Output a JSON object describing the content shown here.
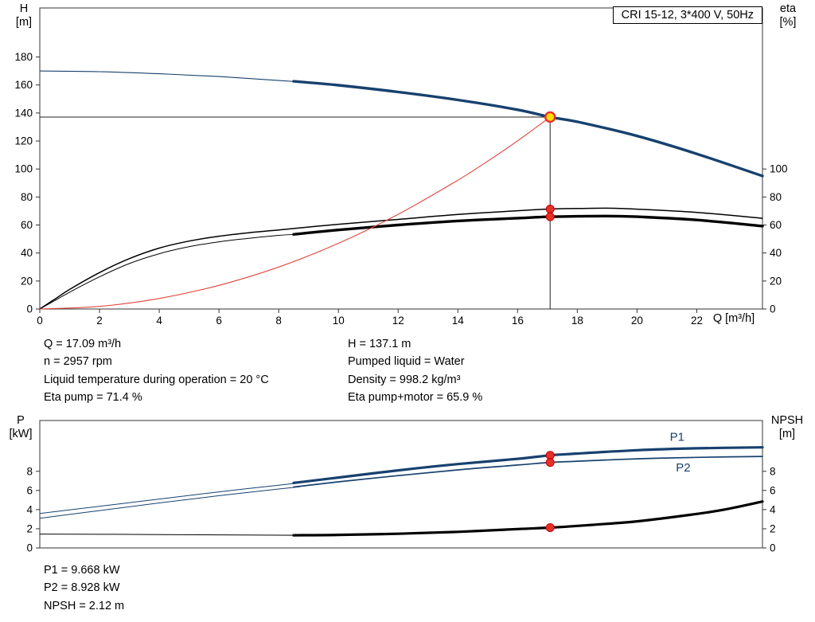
{
  "title_box": "CRI 15-12, 3*400 V, 50Hz",
  "info_top": {
    "left": [
      "Q = 17.09 m³/h",
      "n = 2957 rpm",
      "Liquid temperature during operation = 20 °C",
      "Eta pump = 71.4 %"
    ],
    "right": [
      "H = 137.1 m",
      "Pumped liquid = Water",
      "Density = 998.2 kg/m³",
      "Eta pump+motor = 65.9 %"
    ]
  },
  "info_bottom": [
    "P1 = 9.668 kW",
    "P2 = 8.928 kW",
    "NPSH = 2.12 m"
  ],
  "duty_point": {
    "q_m3h": 17.09,
    "h_m": 137.1,
    "eta_pump_pct": 71.4,
    "eta_pump_motor_pct": 65.9,
    "p1_kw": 9.668,
    "p2_kw": 8.928,
    "npsh_m": 2.12
  },
  "chart_data": [
    {
      "type": "line",
      "name": "hq-eta-chart",
      "xlim": [
        0,
        24.2
      ],
      "ylim": [
        0,
        215
      ],
      "x_ticks": [
        0,
        2,
        4,
        6,
        8,
        10,
        12,
        14,
        16,
        18,
        20,
        22
      ],
      "x_axis_label": "Q [m³/h]",
      "left_axis": {
        "title": [
          "H",
          "[m]"
        ],
        "ticks": [
          0,
          20,
          40,
          60,
          80,
          100,
          120,
          140,
          160,
          180
        ]
      },
      "right_axis": {
        "title": [
          "eta",
          "[%]"
        ],
        "ticks": [
          0,
          20,
          40,
          60,
          80,
          100
        ]
      },
      "series": [
        {
          "name": "head-curve-thin",
          "color": "#17416e",
          "width": 1.1,
          "points": [
            [
              0,
              170
            ],
            [
              2,
              169.5
            ],
            [
              4,
              168
            ],
            [
              6,
              166
            ],
            [
              8,
              163.2
            ],
            [
              9,
              161.8
            ]
          ]
        },
        {
          "name": "head-curve",
          "color": "#17416e",
          "width": 3.4,
          "points": [
            [
              8.5,
              162.6
            ],
            [
              10,
              159.8
            ],
            [
              12,
              155
            ],
            [
              14,
              149.3
            ],
            [
              16,
              142.3
            ],
            [
              17.09,
              137.1
            ],
            [
              18,
              133.7
            ],
            [
              20,
              123.6
            ],
            [
              22,
              110.8
            ],
            [
              24.2,
              95
            ]
          ]
        },
        {
          "name": "eta-pump-curve",
          "color": "#000000",
          "width": 1.5,
          "points": [
            [
              0,
              0
            ],
            [
              0.5,
              7
            ],
            [
              1,
              14
            ],
            [
              2,
              26
            ],
            [
              3,
              36
            ],
            [
              4,
              43.5
            ],
            [
              5,
              48.5
            ],
            [
              6,
              52
            ],
            [
              7,
              54.5
            ],
            [
              8,
              56.5
            ],
            [
              10,
              60.5
            ],
            [
              12,
              64
            ],
            [
              14,
              67.5
            ],
            [
              16,
              70.2
            ],
            [
              17.09,
              71.4
            ],
            [
              18,
              71.8
            ],
            [
              19,
              72
            ],
            [
              20,
              71.3
            ],
            [
              22,
              69
            ],
            [
              24.2,
              64.8
            ]
          ]
        },
        {
          "name": "eta-pump-motor-curve-thin",
          "color": "#000000",
          "width": 1,
          "points": [
            [
              0,
              0
            ],
            [
              0.5,
              6
            ],
            [
              1,
              12
            ],
            [
              2,
              23
            ],
            [
              3,
              32.5
            ],
            [
              4,
              39.5
            ],
            [
              5,
              44.5
            ],
            [
              6,
              48
            ],
            [
              7,
              50.5
            ],
            [
              8,
              52.6
            ],
            [
              8.6,
              53.4
            ]
          ]
        },
        {
          "name": "eta-pump-motor-curve",
          "color": "#000000",
          "width": 3.4,
          "points": [
            [
              8.5,
              53.3
            ],
            [
              10,
              56.5
            ],
            [
              12,
              60
            ],
            [
              14,
              62.9
            ],
            [
              16,
              64.9
            ],
            [
              17.09,
              65.9
            ],
            [
              18,
              66.2
            ],
            [
              19,
              66.4
            ],
            [
              20,
              65.9
            ],
            [
              22,
              63.6
            ],
            [
              24.2,
              59.2
            ]
          ]
        },
        {
          "name": "system-curve",
          "color": "#e0483e",
          "width": 1.1,
          "points": [
            [
              0,
              0
            ],
            [
              2,
              1.9
            ],
            [
              4,
              7.5
            ],
            [
              6,
              16.9
            ],
            [
              8,
              30
            ],
            [
              10,
              46.9
            ],
            [
              12,
              67.6
            ],
            [
              14,
              92
            ],
            [
              15,
              105.6
            ],
            [
              16,
              120.1
            ],
            [
              17.09,
              137.1
            ]
          ]
        }
      ],
      "guide_lines": [
        {
          "name": "duty-vertical-line",
          "points": [
            [
              17.09,
              0
            ],
            [
              17.09,
              137.1
            ]
          ],
          "color": "#222222",
          "width": 1
        },
        {
          "name": "duty-horizontal-line",
          "points": [
            [
              0,
              137.1
            ],
            [
              17.09,
              137.1
            ]
          ],
          "color": "#222222",
          "width": 1
        }
      ],
      "markers": [
        {
          "name": "duty-point",
          "x": 17.09,
          "y": 137.1,
          "r": 6,
          "fill": "#ffdd00",
          "stroke": "#e8302a",
          "stroke_width": 2.4
        },
        {
          "name": "eta-pump-point",
          "x": 17.09,
          "y": 71.4,
          "r": 5,
          "fill": "#e8302a",
          "stroke": "#c00000",
          "stroke_width": 1
        },
        {
          "name": "eta-pump-motor-point",
          "x": 17.09,
          "y": 65.9,
          "r": 5,
          "fill": "#e8302a",
          "stroke": "#c00000",
          "stroke_width": 1
        }
      ],
      "annotations": []
    },
    {
      "type": "line",
      "name": "power-npsh-chart",
      "xlim": [
        0,
        24.2
      ],
      "ylim": [
        0,
        13.3
      ],
      "x_ticks": [],
      "x_axis_label": "",
      "left_axis": {
        "title": [
          "P",
          "[kW]"
        ],
        "ticks": [
          0,
          2,
          4,
          6,
          8
        ]
      },
      "right_axis": {
        "title": [
          "NPSH",
          "[m]"
        ],
        "ticks": [
          0,
          2,
          4,
          6,
          8
        ]
      },
      "series": [
        {
          "name": "p1-curve-thin",
          "color": "#17416e",
          "width": 1,
          "points": [
            [
              0,
              3.6
            ],
            [
              2,
              4.35
            ],
            [
              4,
              5.1
            ],
            [
              6,
              5.85
            ],
            [
              8,
              6.55
            ],
            [
              8.7,
              6.8
            ]
          ]
        },
        {
          "name": "p1-curve",
          "color": "#17416e",
          "width": 3.2,
          "points": [
            [
              8.5,
              6.78
            ],
            [
              10,
              7.35
            ],
            [
              12,
              8.1
            ],
            [
              14,
              8.75
            ],
            [
              16,
              9.3
            ],
            [
              17.09,
              9.668
            ],
            [
              18,
              9.85
            ],
            [
              20,
              10.2
            ],
            [
              22,
              10.4
            ],
            [
              24.2,
              10.5
            ]
          ]
        },
        {
          "name": "p2-curve-thin",
          "color": "#17416e",
          "width": 1,
          "points": [
            [
              0,
              3.1
            ],
            [
              2,
              3.9
            ],
            [
              4,
              4.7
            ],
            [
              6,
              5.45
            ],
            [
              8,
              6.15
            ],
            [
              8.7,
              6.38
            ]
          ]
        },
        {
          "name": "p2-curve",
          "color": "#17416e",
          "width": 1.7,
          "points": [
            [
              8.5,
              6.36
            ],
            [
              10,
              6.9
            ],
            [
              12,
              7.55
            ],
            [
              14,
              8.15
            ],
            [
              16,
              8.65
            ],
            [
              17.09,
              8.928
            ],
            [
              18,
              9.05
            ],
            [
              20,
              9.3
            ],
            [
              22,
              9.45
            ],
            [
              24.2,
              9.55
            ]
          ]
        },
        {
          "name": "npsh-curve-thin",
          "color": "#000000",
          "width": 1,
          "points": [
            [
              0,
              1.45
            ],
            [
              4,
              1.4
            ],
            [
              8,
              1.33
            ],
            [
              8.7,
              1.32
            ]
          ]
        },
        {
          "name": "npsh-curve",
          "color": "#000000",
          "width": 3.2,
          "points": [
            [
              8.5,
              1.32
            ],
            [
              10,
              1.36
            ],
            [
              12,
              1.48
            ],
            [
              14,
              1.68
            ],
            [
              16,
              1.97
            ],
            [
              17.09,
              2.12
            ],
            [
              18,
              2.3
            ],
            [
              20,
              2.78
            ],
            [
              22,
              3.55
            ],
            [
              23,
              4.05
            ],
            [
              24.2,
              4.85
            ]
          ]
        }
      ],
      "guide_lines": [],
      "markers": [
        {
          "name": "p1-point",
          "x": 17.09,
          "y": 9.668,
          "r": 5,
          "fill": "#e8302a",
          "stroke": "#c00000",
          "stroke_width": 1
        },
        {
          "name": "p2-point",
          "x": 17.09,
          "y": 8.928,
          "r": 5,
          "fill": "#e8302a",
          "stroke": "#c00000",
          "stroke_width": 1
        },
        {
          "name": "npsh-point",
          "x": 17.09,
          "y": 2.12,
          "r": 5,
          "fill": "#e8302a",
          "stroke": "#c00000",
          "stroke_width": 1
        }
      ],
      "annotations": [
        {
          "name": "p1-label",
          "text": "P1",
          "x": 21.1,
          "y": 11.2,
          "color": "#17416e"
        },
        {
          "name": "p2-label",
          "text": "P2",
          "x": 21.3,
          "y": 8.0,
          "color": "#17416e"
        }
      ]
    }
  ]
}
